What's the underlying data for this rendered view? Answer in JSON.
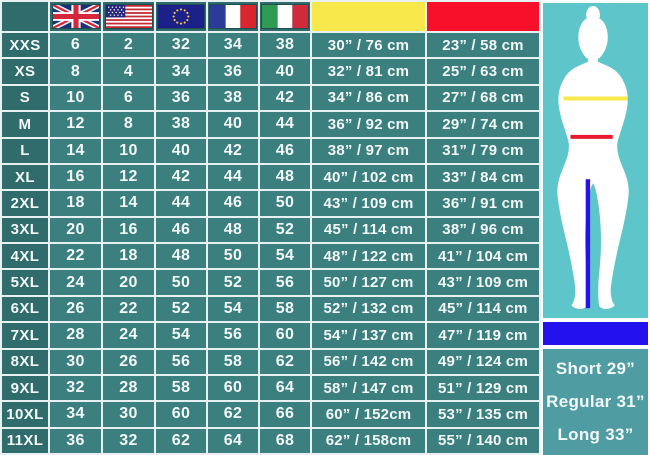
{
  "chart_data": {
    "type": "table",
    "title": "",
    "columns": [
      "size",
      "UK",
      "US",
      "EU",
      "FR",
      "IT",
      "bust (yellow)",
      "waist (red)"
    ],
    "header": {
      "corner_label": "",
      "flag_columns": [
        "uk-flag",
        "us-flag",
        "eu-flag",
        "france-flag",
        "italy-flag"
      ],
      "bust_swatch_color": "#f8e84b",
      "waist_swatch_color": "#f8102a"
    },
    "rows": [
      {
        "size": "XXS",
        "uk": "6",
        "us": "2",
        "eu": "32",
        "fr": "34",
        "it": "38",
        "bust": "30” / 76 cm",
        "waist": "23” / 58 cm"
      },
      {
        "size": "XS",
        "uk": "8",
        "us": "4",
        "eu": "34",
        "fr": "36",
        "it": "40",
        "bust": "32” / 81 cm",
        "waist": "25” / 63 cm"
      },
      {
        "size": "S",
        "uk": "10",
        "us": "6",
        "eu": "36",
        "fr": "38",
        "it": "42",
        "bust": "34” / 86 cm",
        "waist": "27” / 68 cm"
      },
      {
        "size": "M",
        "uk": "12",
        "us": "8",
        "eu": "38",
        "fr": "40",
        "it": "44",
        "bust": "36” / 92 cm",
        "waist": "29” / 74 cm"
      },
      {
        "size": "L",
        "uk": "14",
        "us": "10",
        "eu": "40",
        "fr": "42",
        "it": "46",
        "bust": "38” / 97 cm",
        "waist": "31” / 79 cm"
      },
      {
        "size": "XL",
        "uk": "16",
        "us": "12",
        "eu": "42",
        "fr": "44",
        "it": "48",
        "bust": "40” / 102 cm",
        "waist": "33” / 84 cm"
      },
      {
        "size": "2XL",
        "uk": "18",
        "us": "14",
        "eu": "44",
        "fr": "46",
        "it": "50",
        "bust": "43” / 109 cm",
        "waist": "36” / 91 cm"
      },
      {
        "size": "3XL",
        "uk": "20",
        "us": "16",
        "eu": "46",
        "fr": "48",
        "it": "52",
        "bust": "45” / 114 cm",
        "waist": "38” / 96 cm"
      },
      {
        "size": "4XL",
        "uk": "22",
        "us": "18",
        "eu": "48",
        "fr": "50",
        "it": "54",
        "bust": "48” / 122 cm",
        "waist": "41” / 104 cm"
      },
      {
        "size": "5XL",
        "uk": "24",
        "us": "20",
        "eu": "50",
        "fr": "52",
        "it": "56",
        "bust": "50” / 127 cm",
        "waist": "43” / 109 cm"
      },
      {
        "size": "6XL",
        "uk": "26",
        "us": "22",
        "eu": "52",
        "fr": "54",
        "it": "58",
        "bust": "52” / 132 cm",
        "waist": "45” / 114 cm"
      },
      {
        "size": "7XL",
        "uk": "28",
        "us": "24",
        "eu": "54",
        "fr": "56",
        "it": "60",
        "bust": "54” / 137 cm",
        "waist": "47” / 119 cm"
      },
      {
        "size": "8XL",
        "uk": "30",
        "us": "26",
        "eu": "56",
        "fr": "58",
        "it": "62",
        "bust": "56” / 142 cm",
        "waist": "49” / 124 cm"
      },
      {
        "size": "9XL",
        "uk": "32",
        "us": "28",
        "eu": "58",
        "fr": "60",
        "it": "64",
        "bust": "58” / 147 cm",
        "waist": "51” / 129 cm"
      },
      {
        "size": "10XL",
        "uk": "34",
        "us": "30",
        "eu": "60",
        "fr": "62",
        "it": "66",
        "bust": "60” / 152cm",
        "waist": "53” / 135 cm"
      },
      {
        "size": "11XL",
        "uk": "36",
        "us": "32",
        "eu": "62",
        "fr": "64",
        "it": "68",
        "bust": "62” / 158cm",
        "waist": "55” / 140 cm"
      }
    ],
    "swatch_legend": [
      {
        "color": "#f8e84b",
        "maps_to": "bust-line-on-figure"
      },
      {
        "color": "#f8102a",
        "maps_to": "waist-line-on-figure"
      },
      {
        "color": "#2412ee",
        "maps_to": "inseam-line-on-figure"
      }
    ]
  },
  "panel": {
    "lengths": [
      "Short 29”",
      "Regular 31”",
      "Long 33”"
    ]
  },
  "colors": {
    "header_dark_teal": "#2f6c6b",
    "cell_teal": "#3b7f7f",
    "grid_line": "#e8f1f1",
    "bust_yellow": "#f8e84b",
    "waist_red": "#f8102a",
    "inseam_blue": "#2412ee",
    "panel_turquoise": "#5ec6ca",
    "length_box_teal": "#4f9da2",
    "text_white": "#f3f8f8"
  }
}
